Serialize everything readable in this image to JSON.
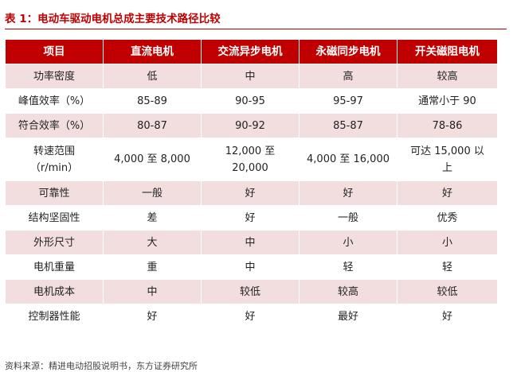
{
  "title": "表 1：电动车驱动电机总成主要技术路径比较",
  "source": "资料来源：精进电动招股说明书，东方证券研究所",
  "table": {
    "headers": [
      "项目",
      "直流电机",
      "交流异步电机",
      "永磁同步电机",
      "开关磁阻电机"
    ],
    "rows": [
      [
        "功率密度",
        "低",
        "中",
        "高",
        "较高"
      ],
      [
        "峰值效率（%）",
        "85-89",
        "90-95",
        "95-97",
        "通常小于 90"
      ],
      [
        "符合效率（%）",
        "80-87",
        "90-92",
        "85-87",
        "78-86"
      ],
      [
        "转速范围\n（r/min）",
        "4,000 至 8,000",
        "12,000 至\n20,000",
        "4,000 至 16,000",
        "可达 15,000 以\n上"
      ],
      [
        "可靠性",
        "一般",
        "好",
        "好",
        "好"
      ],
      [
        "结构坚固性",
        "差",
        "好",
        "一般",
        "优秀"
      ],
      [
        "外形尺寸",
        "大",
        "中",
        "小",
        "小"
      ],
      [
        "电机重量",
        "重",
        "中",
        "轻",
        "轻"
      ],
      [
        "电机成本",
        "中",
        "较低",
        "较高",
        "较低"
      ],
      [
        "控制器性能",
        "好",
        "好",
        "最好",
        "好"
      ]
    ]
  }
}
